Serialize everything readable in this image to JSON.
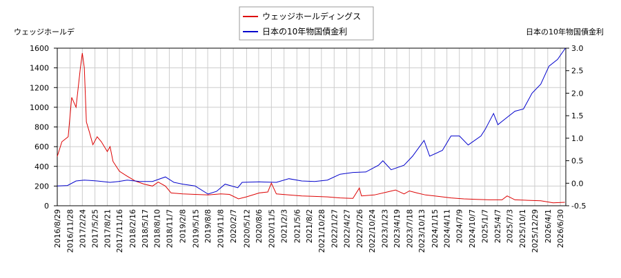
{
  "chart_data": {
    "type": "line",
    "y_label": "ウェッジホールデ",
    "y2_label": "日本の10年物国債金利",
    "xlim": [
      "2016/8/29",
      "2026/8/8"
    ],
    "xticks": [
      "2016/8/29",
      "2016/11/28",
      "2017/2/24",
      "2017/5/25",
      "2017/8/21",
      "2017/11/16",
      "2018/2/16",
      "2018/5/17",
      "2018/8/10",
      "2018/11/7",
      "2019/2/8",
      "2019/5/15",
      "2019/8/8",
      "2019/11/8",
      "2020/2/7",
      "2020/5/12",
      "2020/8/6",
      "2020/11/5",
      "2021/2/3",
      "2021/5/6",
      "2021/8/2",
      "2021/10/28",
      "2022/1/27",
      "2022/4/27",
      "2022/7/26",
      "2022/10/24",
      "2023/1/23",
      "2023/4/19",
      "2023/7/18",
      "2023/10/13",
      "2024/1/15",
      "2024/4/11",
      "2024/7/9",
      "2024/10/7",
      "2025/1/7",
      "2025/4/7",
      "2025/7/3",
      "2025/10/1",
      "2025/12/29",
      "2026/4/1",
      "2026/6/30"
    ],
    "ylim": [
      0,
      1600
    ],
    "yticks": [
      0,
      200,
      400,
      600,
      800,
      1000,
      1200,
      1400,
      1600
    ],
    "y2lim": [
      -0.5,
      3.0
    ],
    "y2ticks": [
      -0.5,
      {
        "value": 0,
        "label": "0.0"
      },
      0.5,
      {
        "value": 1,
        "label": "1.0"
      },
      1.5,
      {
        "value": 2,
        "label": "2.0"
      },
      2.5,
      {
        "value": 3,
        "label": "3.0"
      }
    ],
    "grid": true,
    "legend": "top",
    "series": [
      {
        "name": "ウェッジホールディングス",
        "color": "#dd0000",
        "x": [
          "2016/8/29",
          "2016/10/1",
          "2016/11/15",
          "2016/12/10",
          "2017/1/10",
          "2017/2/10",
          "2017/2/24",
          "2017/3/10",
          "2017/3/25",
          "2017/4/15",
          "2017/5/10",
          "2017/6/10",
          "2017/7/10",
          "2017/8/21",
          "2017/9/10",
          "2017/10/1",
          "2017/11/16",
          "2018/1/10",
          "2018/3/10",
          "2018/5/10",
          "2018/7/10",
          "2018/8/20",
          "2018/10/10",
          "2018/11/20",
          "2019/2/10",
          "2019/5/10",
          "2019/8/10",
          "2019/11/10",
          "2020/1/10",
          "2020/3/15",
          "2020/5/10",
          "2020/8/10",
          "2020/10/10",
          "2020/11/5",
          "2020/12/10",
          "2021/3/10",
          "2021/6/10",
          "2021/9/10",
          "2021/12/10",
          "2022/3/10",
          "2022/6/10",
          "2022/7/26",
          "2022/8/10",
          "2022/11/10",
          "2023/2/10",
          "2023/4/10",
          "2023/6/10",
          "2023/7/18",
          "2023/9/10",
          "2023/11/10",
          "2024/2/10",
          "2024/5/10",
          "2024/8/10",
          "2024/11/10",
          "2025/2/10",
          "2025/5/10",
          "2025/6/15",
          "2025/8/10",
          "2025/11/10",
          "2026/2/10",
          "2026/5/10",
          "2026/8/1"
        ],
        "values": [
          500,
          650,
          700,
          1100,
          1000,
          1400,
          1550,
          1400,
          850,
          750,
          620,
          700,
          650,
          550,
          600,
          450,
          350,
          300,
          250,
          220,
          200,
          240,
          200,
          130,
          120,
          115,
          110,
          120,
          115,
          70,
          90,
          130,
          140,
          230,
          120,
          110,
          100,
          95,
          90,
          80,
          75,
          180,
          100,
          110,
          140,
          160,
          120,
          150,
          130,
          110,
          95,
          80,
          70,
          65,
          60,
          60,
          100,
          60,
          55,
          50,
          30,
          35
        ]
      },
      {
        "name": "日本の10年物国債金利",
        "color": "#0000cc",
        "axis": "y2",
        "x": [
          "2016/8/29",
          "2016/11/10",
          "2017/1/10",
          "2017/3/10",
          "2017/6/10",
          "2017/9/10",
          "2017/11/10",
          "2018/1/10",
          "2018/4/10",
          "2018/7/10",
          "2018/10/10",
          "2018/12/10",
          "2019/2/10",
          "2019/5/10",
          "2019/8/10",
          "2019/10/10",
          "2019/12/10",
          "2020/3/10",
          "2020/4/10",
          "2020/8/10",
          "2020/12/10",
          "2021/3/10",
          "2021/6/10",
          "2021/9/10",
          "2021/12/10",
          "2022/3/10",
          "2022/6/10",
          "2022/9/10",
          "2022/12/10",
          "2023/1/10",
          "2023/3/10",
          "2023/6/10",
          "2023/8/10",
          "2023/10/31",
          "2023/12/10",
          "2024/3/10",
          "2024/5/10",
          "2024/7/10",
          "2024/9/10",
          "2024/12/10",
          "2025/1/10",
          "2025/3/10",
          "2025/4/10",
          "2025/6/10",
          "2025/8/10",
          "2025/10/10",
          "2025/12/10",
          "2026/2/10",
          "2026/4/10",
          "2026/6/10",
          "2026/8/5"
        ],
        "values": [
          -0.06,
          -0.05,
          0.05,
          0.07,
          0.05,
          0.02,
          0.04,
          0.07,
          0.04,
          0.04,
          0.14,
          0.02,
          -0.02,
          -0.06,
          -0.24,
          -0.18,
          -0.02,
          -0.1,
          0.02,
          0.03,
          0.02,
          0.1,
          0.05,
          0.04,
          0.07,
          0.2,
          0.24,
          0.25,
          0.4,
          0.5,
          0.3,
          0.4,
          0.6,
          0.95,
          0.6,
          0.73,
          1.05,
          1.05,
          0.85,
          1.05,
          1.2,
          1.55,
          1.3,
          1.45,
          1.6,
          1.65,
          2.0,
          2.2,
          2.6,
          2.75,
          3.0
        ]
      }
    ]
  }
}
